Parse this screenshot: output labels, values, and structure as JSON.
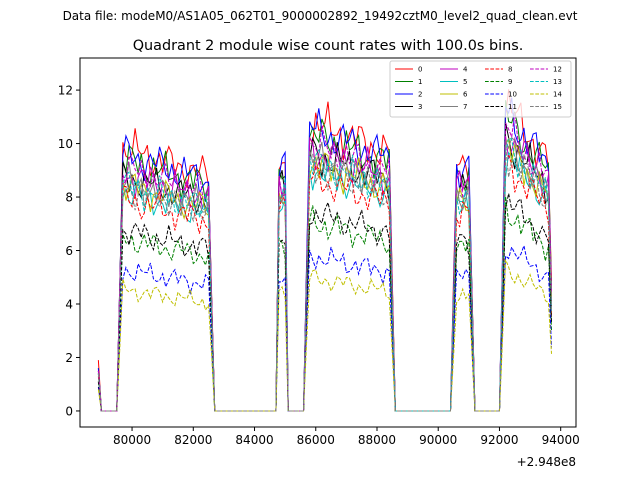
{
  "suptitle": "Data file: modeM0/AS1A05_062T01_9000002892_19492cztM0_level2_quad_clean.evt",
  "offset_label": "+2.948e8",
  "chart_data": {
    "type": "line",
    "title": "Quadrant 2 module wise count rates with 100.0s bins.",
    "xlabel": "",
    "ylabel": "",
    "x_offset": 294800000,
    "xlim": [
      78300,
      94500
    ],
    "ylim": [
      -0.6,
      13.2
    ],
    "xticks": [
      80000,
      82000,
      84000,
      86000,
      88000,
      90000,
      92000,
      94000
    ],
    "xtick_labels": [
      "80000",
      "82000",
      "84000",
      "86000",
      "88000",
      "90000",
      "92000",
      "94000"
    ],
    "yticks": [
      0,
      2,
      4,
      6,
      8,
      10,
      12
    ],
    "ytick_labels": [
      "0",
      "2",
      "4",
      "6",
      "8",
      "10",
      "12"
    ],
    "grid": false,
    "legend_position": "top-right",
    "x_start": 78900,
    "bin": 100,
    "segments": [
      [
        79600,
        82600
      ],
      [
        84800,
        85000
      ],
      [
        85700,
        88500
      ],
      [
        90500,
        91100
      ],
      [
        92100,
        93700
      ]
    ],
    "series": [
      {
        "name": "0",
        "color": "#ff0000",
        "dash": "solid",
        "level": 9.3,
        "gap_level": 1.9
      },
      {
        "name": "1",
        "color": "#008000",
        "dash": "solid",
        "level": 8.9,
        "gap_level": 1.6
      },
      {
        "name": "2",
        "color": "#0000ff",
        "dash": "solid",
        "level": 9.1,
        "gap_level": 1.6
      },
      {
        "name": "3",
        "color": "#000000",
        "dash": "solid",
        "level": 8.3,
        "gap_level": 1.5
      },
      {
        "name": "4",
        "color": "#bf00bf",
        "dash": "solid",
        "level": 8.4,
        "gap_level": 1.5
      },
      {
        "name": "5",
        "color": "#00bfbf",
        "dash": "solid",
        "level": 7.8,
        "gap_level": 1.4
      },
      {
        "name": "6",
        "color": "#bfbf00",
        "dash": "solid",
        "level": 8.0,
        "gap_level": 1.4
      },
      {
        "name": "7",
        "color": "#808080",
        "dash": "solid",
        "level": 8.1,
        "gap_level": 1.4
      },
      {
        "name": "8",
        "color": "#ff0000",
        "dash": "dashed",
        "level": 7.5,
        "gap_level": 1.3
      },
      {
        "name": "9",
        "color": "#008000",
        "dash": "dashed",
        "level": 6.1,
        "gap_level": 1.1
      },
      {
        "name": "10",
        "color": "#0000ff",
        "dash": "dashed",
        "level": 5.0,
        "gap_level": 0.9
      },
      {
        "name": "11",
        "color": "#000000",
        "dash": "dashed",
        "level": 6.4,
        "gap_level": 1.1
      },
      {
        "name": "12",
        "color": "#bf00bf",
        "dash": "dashed",
        "level": 8.6,
        "gap_level": 1.5
      },
      {
        "name": "13",
        "color": "#00bfbf",
        "dash": "dashed",
        "level": 8.0,
        "gap_level": 1.4
      },
      {
        "name": "14",
        "color": "#bfbf00",
        "dash": "dashed",
        "level": 4.3,
        "gap_level": 0.8
      },
      {
        "name": "15",
        "color": "#808080",
        "dash": "dashed",
        "level": 7.9,
        "gap_level": 1.4
      }
    ]
  }
}
